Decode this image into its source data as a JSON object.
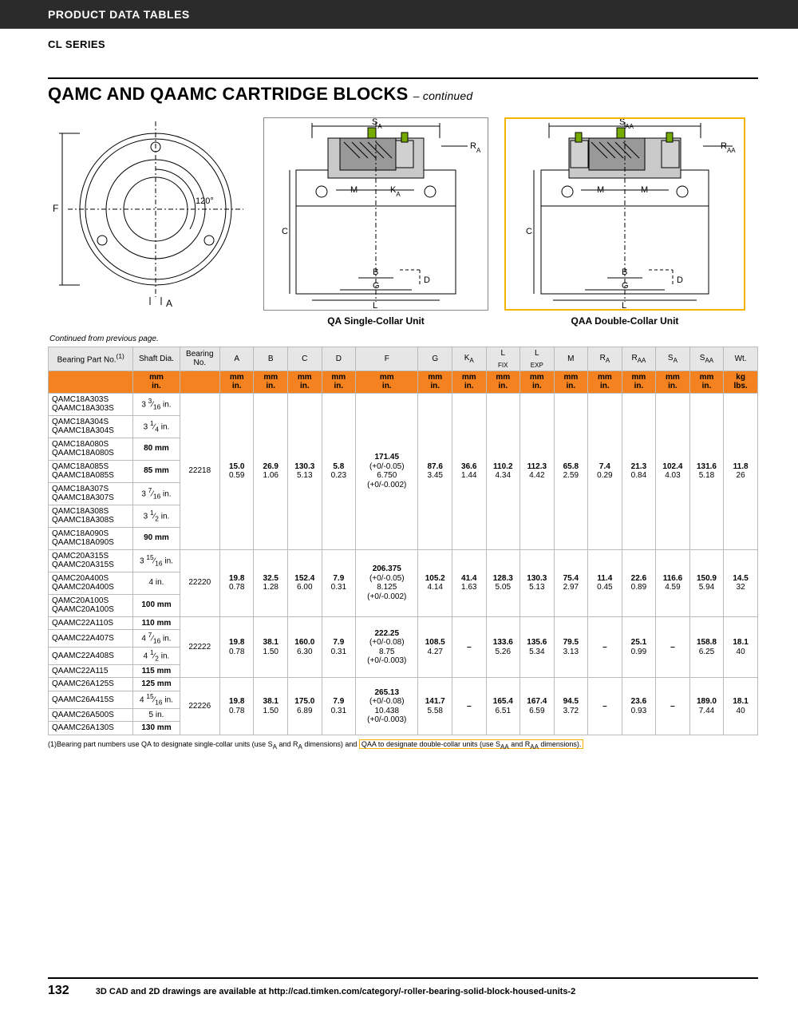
{
  "header": {
    "band": "PRODUCT DATA TABLES",
    "series": "CL SERIES"
  },
  "title": {
    "main": "QAMC AND QAAMC CARTRIDGE BLOCKS",
    "cont": "– continued"
  },
  "diagram_labels": {
    "front": {
      "F": "F",
      "A": "A",
      "angle": "120°"
    },
    "qa": {
      "Sa": "S",
      "Ra": "R",
      "M": "M",
      "Ka": "K",
      "C": "C",
      "B": "B",
      "D": "D",
      "G": "G",
      "L": "L",
      "caption": "QA Single-Collar Unit"
    },
    "qaa": {
      "Saa": "S",
      "Raa": "R",
      "M1": "M",
      "M2": "M",
      "C": "C",
      "B": "B",
      "D": "D",
      "G": "G",
      "L": "L",
      "caption": "QAA Double-Collar Unit"
    }
  },
  "cont_note": "Continued from previous page.",
  "columns": {
    "part": "Bearing\nPart No.",
    "part_sup": "(1)",
    "shaft": "Shaft\nDia.",
    "brgno": "Bearing\nNo.",
    "A": "A",
    "B": "B",
    "C": "C",
    "D": "D",
    "F": "F",
    "G": "G",
    "Ka": "K",
    "Lfix": "L",
    "Lexp": "L",
    "M": "M",
    "Ra": "R",
    "Raa": "R",
    "Sa": "S",
    "Saa": "S",
    "Wt": "Wt.",
    "sub_A": "A",
    "sub_AA": "AA",
    "sub_FIX": "FIX",
    "sub_EXP": "EXP"
  },
  "units": {
    "mm": "mm",
    "in": "in.",
    "kg": "kg",
    "lbs": "lbs."
  },
  "groups": [
    {
      "bearing_no": "22218",
      "rows": [
        {
          "parts": [
            "QAMC18A303S",
            "QAAMC18A303S"
          ],
          "shaft": "3 3/16 in."
        },
        {
          "parts": [
            "QAMC18A304S",
            "QAAMC18A304S"
          ],
          "shaft": "3 1/4 in."
        },
        {
          "parts": [
            "QAMC18A080S",
            "QAAMC18A080S"
          ],
          "shaft": "80 mm",
          "bold": true
        },
        {
          "parts": [
            "QAMC18A085S",
            "QAAMC18A085S"
          ],
          "shaft": "85 mm",
          "bold": true
        },
        {
          "parts": [
            "QAMC18A307S",
            "QAAMC18A307S"
          ],
          "shaft": "3 7/16 in."
        },
        {
          "parts": [
            "QAMC18A308S",
            "QAAMC18A308S"
          ],
          "shaft": "3 1/2 in."
        },
        {
          "parts": [
            "QAMC18A090S",
            "QAAMC18A090S"
          ],
          "shaft": "90 mm",
          "bold": true
        }
      ],
      "vals": {
        "A": [
          "15.0",
          "0.59"
        ],
        "B": [
          "26.9",
          "1.06"
        ],
        "C": [
          "130.3",
          "5.13"
        ],
        "D": [
          "5.8",
          "0.23"
        ],
        "F": [
          "171.45",
          "(+0/-0.05)",
          "6.750",
          "(+0/-0.002)"
        ],
        "G": [
          "87.6",
          "3.45"
        ],
        "Ka": [
          "36.6",
          "1.44"
        ],
        "Lfix": [
          "110.2",
          "4.34"
        ],
        "Lexp": [
          "112.3",
          "4.42"
        ],
        "M": [
          "65.8",
          "2.59"
        ],
        "Ra": [
          "7.4",
          "0.29"
        ],
        "Raa": [
          "21.3",
          "0.84"
        ],
        "Sa": [
          "102.4",
          "4.03"
        ],
        "Saa": [
          "131.6",
          "5.18"
        ],
        "Wt": [
          "11.8",
          "26"
        ]
      }
    },
    {
      "bearing_no": "22220",
      "rows": [
        {
          "parts": [
            "QAMC20A315S",
            "QAAMC20A315S"
          ],
          "shaft": "3 15/16 in."
        },
        {
          "parts": [
            "QAMC20A400S",
            "QAAMC20A400S"
          ],
          "shaft": "4 in."
        },
        {
          "parts": [
            "QAMC20A100S",
            "QAAMC20A100S"
          ],
          "shaft": "100 mm",
          "bold": true
        }
      ],
      "vals": {
        "A": [
          "19.8",
          "0.78"
        ],
        "B": [
          "32.5",
          "1.28"
        ],
        "C": [
          "152.4",
          "6.00"
        ],
        "D": [
          "7.9",
          "0.31"
        ],
        "F": [
          "206.375",
          "(+0/-0.05)",
          "8.125",
          "(+0/-0.002)"
        ],
        "G": [
          "105.2",
          "4.14"
        ],
        "Ka": [
          "41.4",
          "1.63"
        ],
        "Lfix": [
          "128.3",
          "5.05"
        ],
        "Lexp": [
          "130.3",
          "5.13"
        ],
        "M": [
          "75.4",
          "2.97"
        ],
        "Ra": [
          "11.4",
          "0.45"
        ],
        "Raa": [
          "22.6",
          "0.89"
        ],
        "Sa": [
          "116.6",
          "4.59"
        ],
        "Saa": [
          "150.9",
          "5.94"
        ],
        "Wt": [
          "14.5",
          "32"
        ]
      }
    },
    {
      "bearing_no": "22222",
      "rows": [
        {
          "parts": [
            "QAAMC22A110S"
          ],
          "shaft": "110 mm",
          "bold": true
        },
        {
          "parts": [
            "QAAMC22A407S"
          ],
          "shaft": "4 7/16 in."
        },
        {
          "parts": [
            "QAAMC22A408S"
          ],
          "shaft": "4 1/2 in."
        },
        {
          "parts": [
            "QAAMC22A115"
          ],
          "shaft": "115 mm",
          "bold": true
        }
      ],
      "vals": {
        "A": [
          "19.8",
          "0.78"
        ],
        "B": [
          "38.1",
          "1.50"
        ],
        "C": [
          "160.0",
          "6.30"
        ],
        "D": [
          "7.9",
          "0.31"
        ],
        "F": [
          "222.25",
          "(+0/-0.08)",
          "8.75",
          "(+0/-0.003)"
        ],
        "G": [
          "108.5",
          "4.27"
        ],
        "Ka": [
          "–"
        ],
        "Lfix": [
          "133.6",
          "5.26"
        ],
        "Lexp": [
          "135.6",
          "5.34"
        ],
        "M": [
          "79.5",
          "3.13"
        ],
        "Ra": [
          "–"
        ],
        "Raa": [
          "25.1",
          "0.99"
        ],
        "Sa": [
          "–"
        ],
        "Saa": [
          "158.8",
          "6.25"
        ],
        "Wt": [
          "18.1",
          "40"
        ]
      }
    },
    {
      "bearing_no": "22226",
      "rows": [
        {
          "parts": [
            "QAAMC26A125S"
          ],
          "shaft": "125 mm",
          "bold": true
        },
        {
          "parts": [
            "QAAMC26A415S"
          ],
          "shaft": "4 15/16 in."
        },
        {
          "parts": [
            "QAAMC26A500S"
          ],
          "shaft": "5 in."
        },
        {
          "parts": [
            "QAAMC26A130S"
          ],
          "shaft": "130 mm",
          "bold": true
        }
      ],
      "vals": {
        "A": [
          "19.8",
          "0.78"
        ],
        "B": [
          "38.1",
          "1.50"
        ],
        "C": [
          "175.0",
          "6.89"
        ],
        "D": [
          "7.9",
          "0.31"
        ],
        "F": [
          "265.13",
          "(+0/-0.08)",
          "10.438",
          "(+0/-0.003)"
        ],
        "G": [
          "141.7",
          "5.58"
        ],
        "Ka": [
          "–"
        ],
        "Lfix": [
          "165.4",
          "6.51"
        ],
        "Lexp": [
          "167.4",
          "6.59"
        ],
        "M": [
          "94.5",
          "3.72"
        ],
        "Ra": [
          "–"
        ],
        "Raa": [
          "23.6",
          "0.93"
        ],
        "Sa": [
          "–"
        ],
        "Saa": [
          "189.0",
          "7.44"
        ],
        "Wt": [
          "18.1",
          "40"
        ]
      }
    }
  ],
  "footnote": {
    "pre": "(1)Bearing part numbers use QA to designate single-collar units (use S",
    "sa": "A",
    "mid1": " and R",
    "ra": "A",
    "mid2": " dimensions) and ",
    "hl": "QAA to designate double-collar units (use S",
    "saa": "AA",
    "hl2": " and R",
    "raa": "AA",
    "hl3": " dimensions)."
  },
  "footer": {
    "page": "132",
    "text": "3D CAD and 2D drawings are available at http://cad.timken.com/category/-roller-bearing-solid-block-housed-units-2"
  },
  "colors": {
    "orange": "#f58220",
    "yellow": "#f4b400",
    "band": "#2b2b2b"
  }
}
